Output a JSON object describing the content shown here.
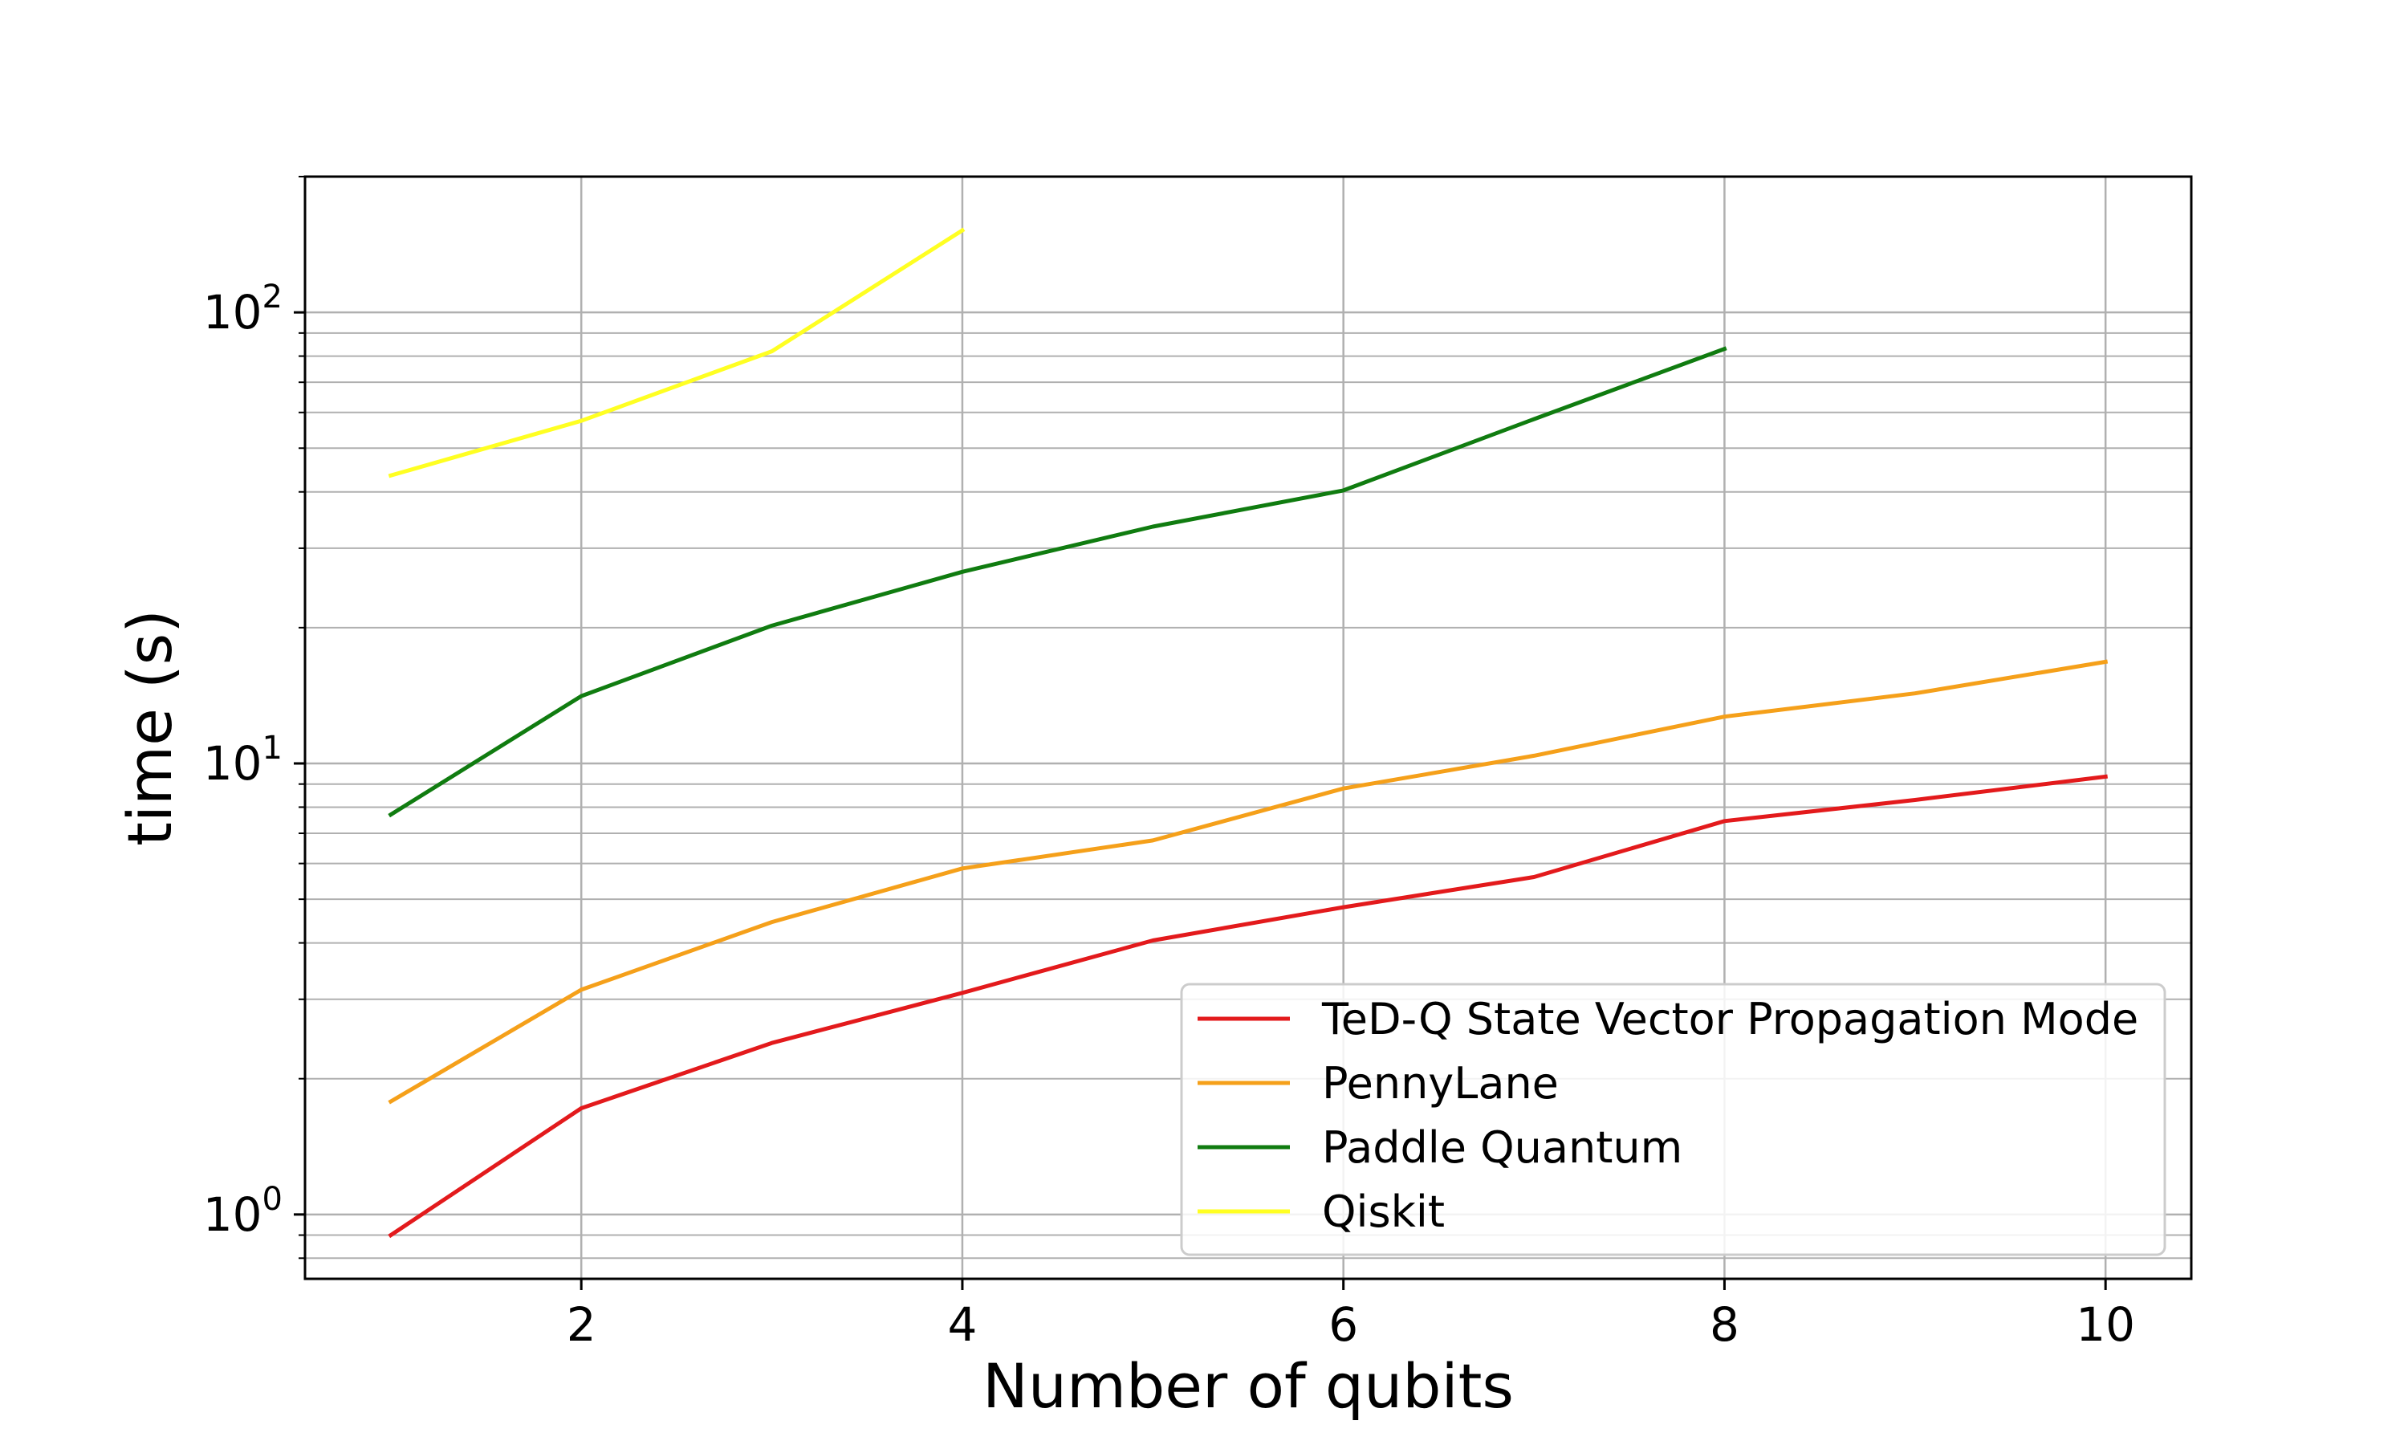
{
  "chart_data": {
    "type": "line",
    "xlabel": "Number of qubits",
    "ylabel": "time (s)",
    "yscale": "log",
    "xlim": [
      0.55,
      10.45
    ],
    "ylim": [
      0.72,
      200
    ],
    "grid": true,
    "legend_position": "lower-right",
    "x_ticks": [
      2,
      4,
      6,
      8,
      10
    ],
    "x_tick_labels": [
      "2",
      "4",
      "6",
      "8",
      "10"
    ],
    "y_ticks": [
      1,
      10,
      100
    ],
    "y_tick_labels": [
      {
        "base": "10",
        "exp": "0"
      },
      {
        "base": "10",
        "exp": "1"
      },
      {
        "base": "10",
        "exp": "2"
      }
    ],
    "series": [
      {
        "name": "TeD-Q State Vector Propagation Mode",
        "color": "#e31a1c",
        "x": [
          1,
          2,
          3,
          4,
          5,
          6,
          7,
          8,
          9,
          10
        ],
        "y": [
          0.9,
          1.72,
          2.4,
          3.1,
          4.05,
          4.8,
          5.6,
          7.45,
          8.3,
          9.35
        ]
      },
      {
        "name": "PennyLane",
        "color": "#f5a01a",
        "x": [
          1,
          2,
          3,
          4,
          5,
          6,
          7,
          8,
          9,
          10
        ],
        "y": [
          1.78,
          3.15,
          4.45,
          5.85,
          6.75,
          8.8,
          10.4,
          12.7,
          14.3,
          16.8
        ]
      },
      {
        "name": "Paddle Quantum",
        "color": "#107c10",
        "x": [
          1,
          2,
          3,
          4,
          5,
          6,
          7,
          8
        ],
        "y": [
          7.7,
          14.1,
          20.2,
          26.6,
          33.5,
          40.3,
          58.0,
          83.0
        ]
      },
      {
        "name": "Qiskit",
        "color": "#ffff22",
        "x": [
          1,
          2,
          3,
          4
        ],
        "y": [
          43.5,
          57.5,
          82.0,
          152.0
        ]
      }
    ]
  }
}
